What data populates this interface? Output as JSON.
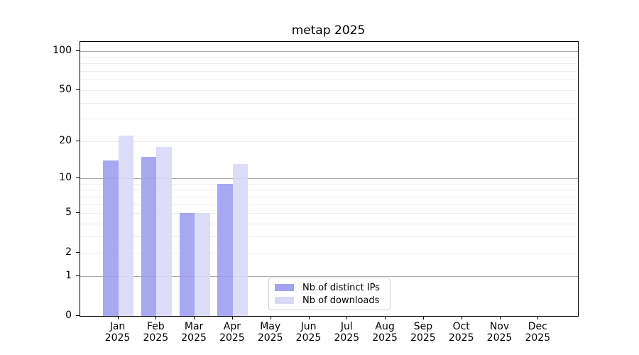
{
  "chart_data": {
    "type": "bar",
    "title": "metap 2025",
    "categories": [
      "Jan",
      "Feb",
      "Mar",
      "Apr",
      "May",
      "Jun",
      "Jul",
      "Aug",
      "Sep",
      "Oct",
      "Nov",
      "Dec"
    ],
    "x_sub_label": "2025",
    "series": [
      {
        "key": "distinct-ips",
        "name": "Nb of distinct IPs",
        "bar_color": "#9c9cf0",
        "legend_color": "#a3a3f0",
        "values": [
          14,
          15,
          5,
          9,
          null,
          null,
          null,
          null,
          null,
          null,
          null,
          null
        ]
      },
      {
        "key": "downloads",
        "name": "Nb of downloads",
        "bar_color": "#d8d8f8",
        "legend_color": "#d9d9f7",
        "values": [
          22,
          18,
          5,
          13,
          null,
          null,
          null,
          null,
          null,
          null,
          null,
          null
        ]
      }
    ],
    "y_axis": {
      "scale": "log10(value+1)",
      "top_value": 117,
      "ticks": [
        100,
        50,
        20,
        10,
        5,
        2,
        1,
        0
      ]
    },
    "grid": {
      "major": [
        1,
        10,
        100
      ],
      "minor": [
        2,
        3,
        4,
        5,
        6,
        7,
        8,
        9,
        20,
        30,
        40,
        50,
        60,
        70,
        80,
        90
      ]
    },
    "legend_position": "inside-bottom-center"
  },
  "colors": {
    "grid_major": "#a9a9a9",
    "grid_minor": "#ededed",
    "axis": "#000000",
    "background": "#ffffff"
  }
}
